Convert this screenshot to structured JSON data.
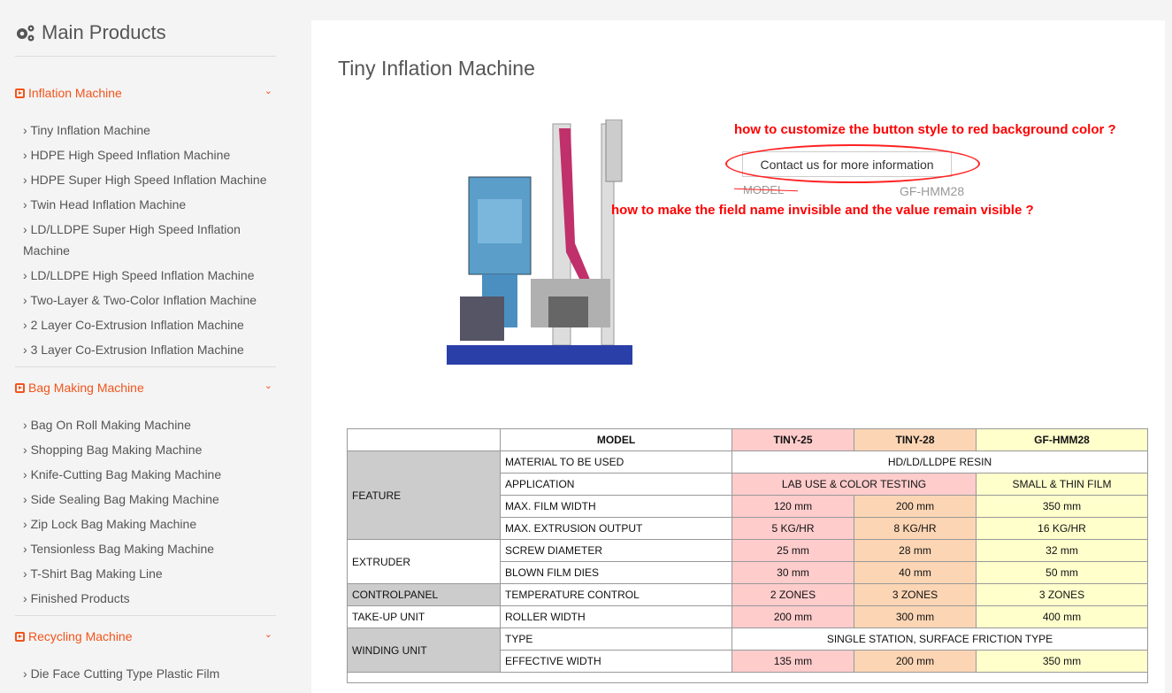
{
  "sidebar": {
    "title": "Main Products",
    "title_icon": "gears-icon",
    "categories": [
      {
        "label": "Inflation Machine",
        "items": [
          "Tiny Inflation Machine",
          "HDPE High Speed Inflation Machine",
          "HDPE Super High Speed Inflation Machine",
          "Twin Head Inflation Machine",
          "LD/LLDPE Super High Speed Inflation Machine",
          "LD/LLDPE High Speed Inflation Machine",
          "Two-Layer & Two-Color Inflation Machine",
          "2 Layer Co-Extrusion Inflation Machine",
          "3 Layer Co-Extrusion Inflation Machine"
        ]
      },
      {
        "label": "Bag Making Machine",
        "items": [
          "Bag On Roll Making Machine",
          "Shopping Bag Making Machine",
          "Knife-Cutting Bag Making Machine",
          "Side Sealing Bag Making Machine",
          "Zip Lock Bag Making Machine",
          "Tensionless Bag Making Machine",
          "T-Shirt Bag Making Line",
          "Finished Products"
        ]
      },
      {
        "label": "Recycling Machine",
        "items": [
          "Die Face Cutting Type Plastic Film"
        ]
      }
    ]
  },
  "product": {
    "title": "Tiny Inflation Machine",
    "contact_button": "Contact us for more information",
    "field_name": "MODEL",
    "field_value": "GF-HMM28"
  },
  "annotations": {
    "button": "how to customize the button style to red background color ?",
    "field": "how to make the field name invisible and the value remain visible ?"
  },
  "colors": {
    "accent": "#f2541b",
    "annotation": "#ff0000",
    "tiny25": "#ffcccc",
    "tiny28": "#fcd5b4",
    "gfhmm28": "#ffffcc",
    "group": "#cccccc"
  },
  "table": {
    "header": [
      "MODEL",
      "TINY-25",
      "TINY-28",
      "GF-HMM28"
    ],
    "groups": [
      "FEATURE",
      "EXTRUDER",
      "CONTROLPANEL",
      "TAKE-UP UNIT",
      "WINDING UNIT"
    ],
    "rows": [
      {
        "name": "MATERIAL TO BE USED",
        "span": "HD/LD/LLDPE RESIN"
      },
      {
        "name": "APPLICATION",
        "span2": "LAB USE & COLOR TESTING",
        "v3": "SMALL & THIN FILM"
      },
      {
        "name": "MAX. FILM WIDTH",
        "v": [
          "120 mm",
          "200 mm",
          "350 mm"
        ]
      },
      {
        "name": "MAX. EXTRUSION OUTPUT",
        "v": [
          "5 KG/HR",
          "8 KG/HR",
          "16 KG/HR"
        ]
      },
      {
        "name": "SCREW DIAMETER",
        "v": [
          "25 mm",
          "28 mm",
          "32 mm"
        ]
      },
      {
        "name": "BLOWN FILM DIES",
        "v": [
          "30 mm",
          "40 mm",
          "50 mm"
        ]
      },
      {
        "name": "TEMPERATURE CONTROL",
        "v": [
          "2 ZONES",
          "3 ZONES",
          "3 ZONES"
        ]
      },
      {
        "name": "ROLLER WIDTH",
        "v": [
          "200 mm",
          "300 mm",
          "400 mm"
        ]
      },
      {
        "name": "TYPE",
        "span": "SINGLE STATION, SURFACE FRICTION TYPE"
      },
      {
        "name": "EFFECTIVE WIDTH",
        "v": [
          "135 mm",
          "200 mm",
          "350 mm"
        ]
      }
    ]
  }
}
